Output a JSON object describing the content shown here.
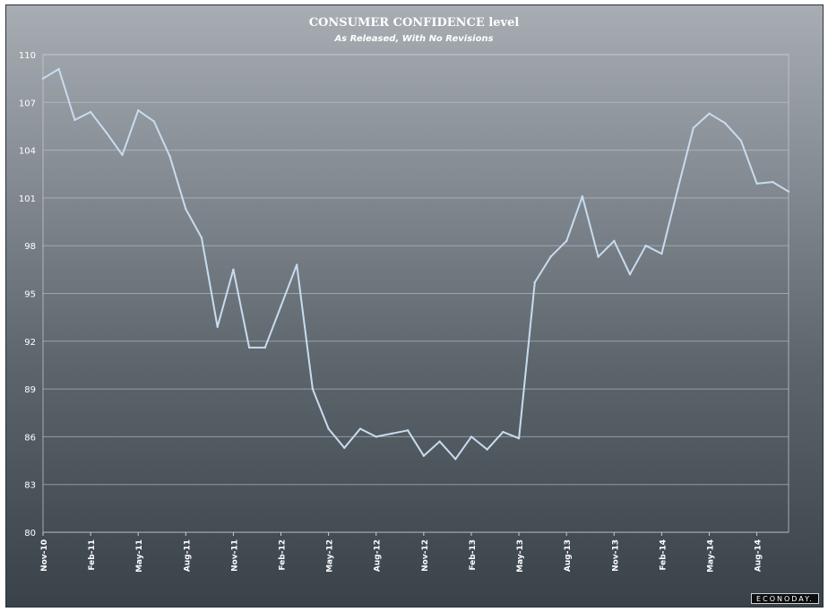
{
  "title": "CONSUMER CONFIDENCE level",
  "subtitle": "As Released, With No Revisions",
  "logo_text": "ECONODAY.",
  "colors": {
    "line": "#c8dcf0",
    "grid": "#c9ced3",
    "text": "#ffffff"
  },
  "chart_data": {
    "type": "line",
    "title": "CONSUMER CONFIDENCE level",
    "subtitle": "As Released, With No Revisions",
    "ylim": [
      80,
      110
    ],
    "yticks": [
      80,
      83,
      86,
      89,
      92,
      95,
      98,
      101,
      104,
      107,
      110
    ],
    "x": [
      "Nov-10",
      "Dec-10",
      "Jan-11",
      "Feb-11",
      "Mar-11",
      "Apr-11",
      "May-11",
      "Jun-11",
      "Jul-11",
      "Aug-11",
      "Sep-11",
      "Oct-11",
      "Nov-11",
      "Dec-11",
      "Jan-12",
      "Feb-12",
      "Mar-12",
      "Apr-12",
      "May-12",
      "Jun-12",
      "Jul-12",
      "Aug-12",
      "Sep-12",
      "Oct-12",
      "Nov-12",
      "Dec-12",
      "Jan-13",
      "Feb-13",
      "Mar-13",
      "Apr-13",
      "May-13",
      "Jun-13",
      "Jul-13",
      "Aug-13",
      "Sep-13",
      "Oct-13",
      "Nov-13",
      "Dec-13",
      "Jan-14",
      "Feb-14",
      "Mar-14",
      "Apr-14",
      "May-14",
      "Jun-14",
      "Jul-14",
      "Aug-14",
      "Sep-14",
      "Oct-14"
    ],
    "xtick_labels": [
      "Nov-10",
      "Feb-11",
      "May-11",
      "Aug-11",
      "Nov-11",
      "Feb-12",
      "May-12",
      "Aug-12",
      "Nov-12",
      "Feb-13",
      "May-13",
      "Aug-13",
      "Nov-13",
      "Feb-14",
      "May-14",
      "Aug-14"
    ],
    "series": [
      {
        "values": [
          108.5,
          109.1,
          105.9,
          106.4,
          105.1,
          103.7,
          106.5,
          105.8,
          103.6,
          100.3,
          98.5,
          92.9,
          96.5,
          91.6,
          91.6,
          94.2,
          96.8,
          89.0,
          86.5,
          85.3,
          86.5,
          86.0,
          86.2,
          86.4,
          84.8,
          85.7,
          84.6,
          86.0,
          85.2,
          86.3,
          85.9,
          95.7,
          97.3,
          98.3,
          101.1,
          97.3,
          98.3,
          96.2,
          98.0,
          97.5,
          101.5,
          105.4,
          106.3,
          105.7,
          104.6,
          101.9,
          102.0,
          101.4
        ]
      }
    ],
    "grid": true,
    "legend": "none"
  }
}
